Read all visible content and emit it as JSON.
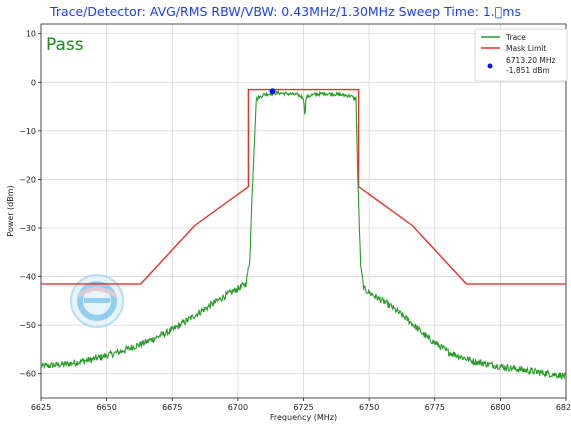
{
  "header": {
    "title": "Trace/Detector: AVG/RMS    RBW/VBW: 0.43MHz/1.30MHz    Sweep Time: 1.\u0000ms"
  },
  "verdict": {
    "text": "Pass",
    "color": "#1a8a1a"
  },
  "chart_data": {
    "type": "line",
    "xlabel": "Frequency (MHz)",
    "ylabel": "Power (dBm)",
    "xlim": [
      6625,
      6825
    ],
    "ylim": [
      -65,
      12
    ],
    "xticks": [
      6625,
      6650,
      6675,
      6700,
      6725,
      6750,
      6775,
      6800,
      6825
    ],
    "xtick_labels": [
      "6625",
      "6650",
      "6675",
      "6700",
      "6725",
      "6750",
      "6775",
      "6800",
      "6825"
    ],
    "yticks": [
      10,
      0,
      -10,
      -20,
      -30,
      -40,
      -50,
      -60
    ],
    "ytick_labels": [
      "10",
      "0",
      "−10",
      "−20",
      "−30",
      "−40",
      "−50",
      "−60"
    ],
    "grid": true,
    "legend_position": "top-right",
    "series": [
      {
        "name": "Trace",
        "color": "#2a9a2a",
        "x": [
          6625,
          6635,
          6645,
          6655,
          6665,
          6675,
          6685,
          6695,
          6700,
          6703,
          6704.5,
          6705.5,
          6707,
          6710,
          6715,
          6720,
          6723,
          6725,
          6725.5,
          6726,
          6728,
          6733,
          6738,
          6743,
          6745,
          6745.8,
          6746.8,
          6748,
          6752,
          6758,
          6765,
          6772,
          6780,
          6790,
          6800,
          6812,
          6825
        ],
        "values": [
          -58.5,
          -58,
          -57,
          -55.5,
          -53.5,
          -51,
          -47.5,
          -44,
          -42.5,
          -41.5,
          -37,
          -22,
          -3.5,
          -2.5,
          -2.2,
          -2.4,
          -2.6,
          -3.2,
          -6.8,
          -3.2,
          -2.6,
          -2.3,
          -2.5,
          -2.8,
          -3.5,
          -22,
          -38,
          -42.5,
          -44,
          -46,
          -49,
          -52.5,
          -55.5,
          -57.5,
          -58.5,
          -59.5,
          -60.5
        ]
      },
      {
        "name": "Mask Limit",
        "color": "#e8312a",
        "x": [
          6625,
          6663,
          6683.5,
          6704,
          6704,
          6746,
          6746,
          6766.5,
          6787,
          6825
        ],
        "values": [
          -41.5,
          -41.5,
          -29.5,
          -21.5,
          -1.5,
          -1.5,
          -21.5,
          -29.5,
          -41.5,
          -41.5
        ]
      }
    ],
    "marker": {
      "label_freq": "6713.20 MHz",
      "label_power": "-1.851 dBm",
      "x": 6713.2,
      "y": -1.851,
      "color": "#1010ee"
    }
  }
}
